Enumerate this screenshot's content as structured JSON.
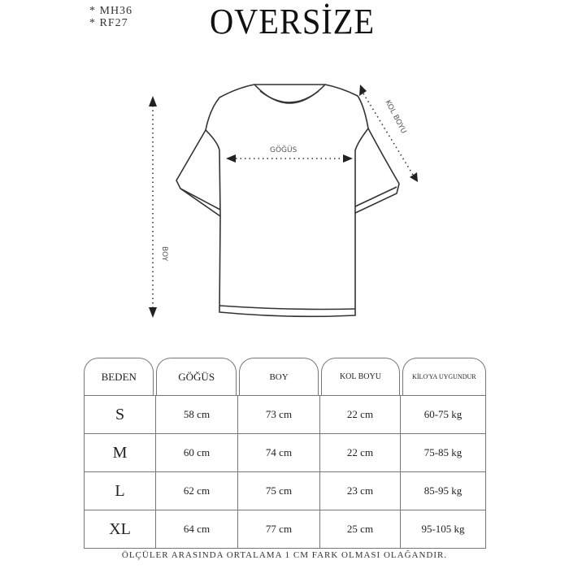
{
  "header": {
    "codes": [
      "* MH36",
      "* RF27"
    ],
    "title": "OVERSİZE"
  },
  "diagram": {
    "chest_label": "GÖĞÜS",
    "sleeve_label": "KOL BOYU",
    "length_label": "BOY"
  },
  "table": {
    "headers": [
      "BEDEN",
      "GÖĞÜS",
      "BOY",
      "KOL BOYU",
      "KİLO'YA UYGUNDUR"
    ],
    "rows": [
      [
        "S",
        "58 cm",
        "73 cm",
        "22  cm",
        "60-75 kg"
      ],
      [
        "M",
        "60 cm",
        "74 cm",
        "22 cm",
        "75-85 kg"
      ],
      [
        "L",
        "62 cm",
        "75 cm",
        "23 cm",
        "85-95 kg"
      ],
      [
        "XL",
        "64 cm",
        "77 cm",
        "25 cm",
        "95-105 kg"
      ]
    ]
  },
  "footer": "ÖLÇÜLER ARASINDA ORTALAMA 1 CM FARK OLMASI OLAĞANDIR."
}
